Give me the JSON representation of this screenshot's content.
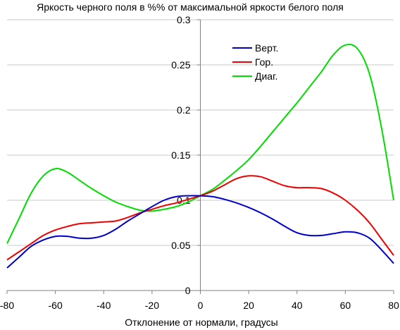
{
  "chart_data": {
    "type": "line",
    "title": "Яркость черного поля в %% от максимальной яркости белого поля",
    "xlabel": "Отклонение от нормали, градусы",
    "ylabel": "",
    "xlim": [
      -80,
      80
    ],
    "ylim": [
      0,
      0.3
    ],
    "x_ticks": [
      -80,
      -60,
      -40,
      -20,
      0,
      20,
      40,
      60,
      80
    ],
    "y_ticks": [
      0,
      0.05,
      0.1,
      0.15,
      0.2,
      0.25,
      0.3
    ],
    "y_tick_labels": [
      "0",
      "0.05",
      "0.1",
      "0.15",
      "0.2",
      "0.25",
      "0.3"
    ],
    "grid": "horizontal",
    "legend_position": "top-right",
    "series": [
      {
        "name": "Верт.",
        "color": "#0000cc",
        "points": [
          [
            -80,
            0.025
          ],
          [
            -75,
            0.037
          ],
          [
            -70,
            0.049
          ],
          [
            -65,
            0.056
          ],
          [
            -60,
            0.06
          ],
          [
            -55,
            0.06
          ],
          [
            -50,
            0.058
          ],
          [
            -45,
            0.058
          ],
          [
            -40,
            0.061
          ],
          [
            -35,
            0.068
          ],
          [
            -30,
            0.077
          ],
          [
            -25,
            0.085
          ],
          [
            -20,
            0.093
          ],
          [
            -15,
            0.1
          ],
          [
            -10,
            0.104
          ],
          [
            -5,
            0.105
          ],
          [
            0,
            0.105
          ],
          [
            5,
            0.104
          ],
          [
            10,
            0.101
          ],
          [
            15,
            0.097
          ],
          [
            20,
            0.092
          ],
          [
            25,
            0.086
          ],
          [
            30,
            0.079
          ],
          [
            35,
            0.071
          ],
          [
            40,
            0.064
          ],
          [
            45,
            0.061
          ],
          [
            50,
            0.061
          ],
          [
            55,
            0.063
          ],
          [
            60,
            0.065
          ],
          [
            65,
            0.064
          ],
          [
            70,
            0.058
          ],
          [
            75,
            0.045
          ],
          [
            80,
            0.03
          ]
        ]
      },
      {
        "name": "Гор.",
        "color": "#ee0000",
        "points": [
          [
            -80,
            0.034
          ],
          [
            -75,
            0.043
          ],
          [
            -70,
            0.052
          ],
          [
            -65,
            0.061
          ],
          [
            -60,
            0.067
          ],
          [
            -55,
            0.071
          ],
          [
            -50,
            0.074
          ],
          [
            -45,
            0.075
          ],
          [
            -40,
            0.076
          ],
          [
            -35,
            0.077
          ],
          [
            -30,
            0.081
          ],
          [
            -25,
            0.086
          ],
          [
            -20,
            0.09
          ],
          [
            -15,
            0.094
          ],
          [
            -10,
            0.097
          ],
          [
            -5,
            0.101
          ],
          [
            0,
            0.105
          ],
          [
            5,
            0.11
          ],
          [
            10,
            0.117
          ],
          [
            15,
            0.124
          ],
          [
            20,
            0.127
          ],
          [
            25,
            0.126
          ],
          [
            30,
            0.121
          ],
          [
            35,
            0.116
          ],
          [
            40,
            0.114
          ],
          [
            45,
            0.114
          ],
          [
            50,
            0.113
          ],
          [
            55,
            0.108
          ],
          [
            60,
            0.1
          ],
          [
            65,
            0.089
          ],
          [
            70,
            0.075
          ],
          [
            75,
            0.057
          ],
          [
            80,
            0.039
          ]
        ]
      },
      {
        "name": "Диаг.",
        "color": "#00dd00",
        "points": [
          [
            -80,
            0.052
          ],
          [
            -75,
            0.08
          ],
          [
            -70,
            0.108
          ],
          [
            -65,
            0.127
          ],
          [
            -60,
            0.135
          ],
          [
            -55,
            0.131
          ],
          [
            -50,
            0.122
          ],
          [
            -45,
            0.113
          ],
          [
            -40,
            0.105
          ],
          [
            -35,
            0.098
          ],
          [
            -30,
            0.093
          ],
          [
            -25,
            0.089
          ],
          [
            -20,
            0.088
          ],
          [
            -15,
            0.09
          ],
          [
            -10,
            0.093
          ],
          [
            -5,
            0.098
          ],
          [
            0,
            0.105
          ],
          [
            5,
            0.112
          ],
          [
            10,
            0.122
          ],
          [
            15,
            0.133
          ],
          [
            20,
            0.145
          ],
          [
            25,
            0.16
          ],
          [
            30,
            0.176
          ],
          [
            35,
            0.192
          ],
          [
            40,
            0.208
          ],
          [
            45,
            0.225
          ],
          [
            50,
            0.242
          ],
          [
            55,
            0.261
          ],
          [
            60,
            0.272
          ],
          [
            65,
            0.268
          ],
          [
            70,
            0.24
          ],
          [
            75,
            0.18
          ],
          [
            80,
            0.1
          ]
        ]
      }
    ]
  }
}
